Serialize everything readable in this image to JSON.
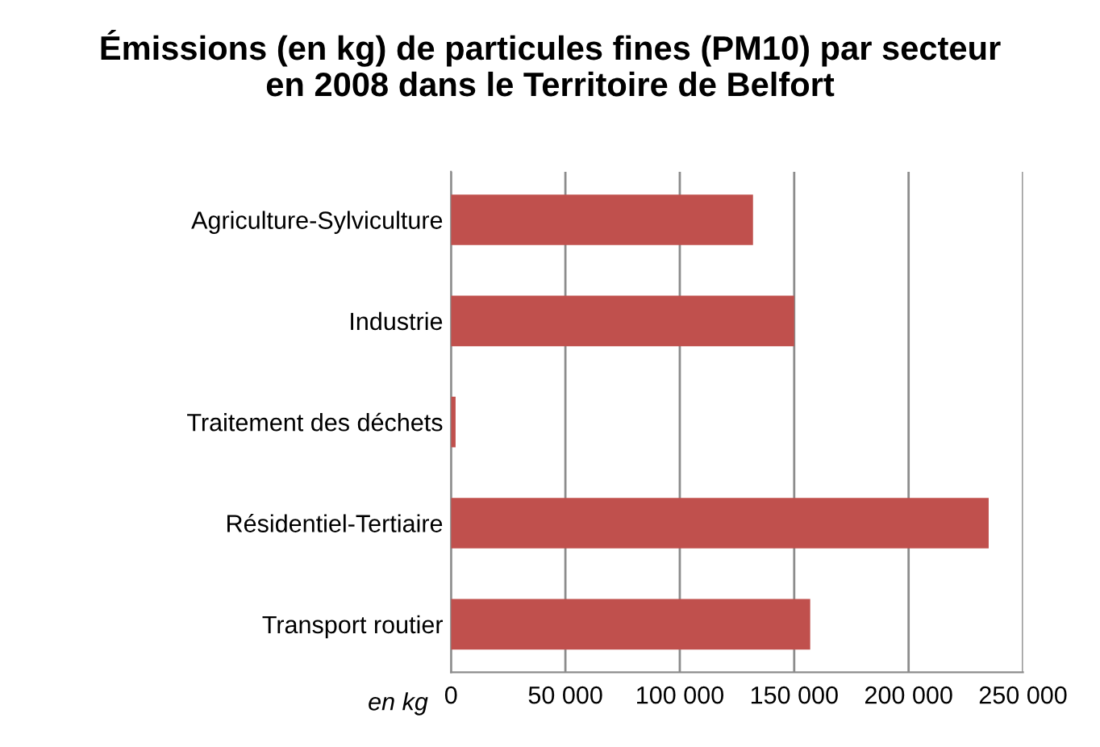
{
  "chart_data": {
    "type": "bar",
    "orientation": "horizontal",
    "title": "Émissions (en kg) de particules fines (PM10) par secteur\nen 2008 dans le Territoire de Belfort",
    "xlabel": "en kg",
    "categories": [
      "Agriculture-Sylviculture",
      "Industrie",
      "Traitement des déchets",
      "Résidentiel-Tertiaire",
      "Transport routier"
    ],
    "values": [
      132000,
      150000,
      2000,
      235000,
      157000
    ],
    "color": "#c0504d",
    "xlim": [
      0,
      250000
    ],
    "xticks": [
      {
        "value": 0,
        "label": "0"
      },
      {
        "value": 50000,
        "label": "50 000"
      },
      {
        "value": 100000,
        "label": "100 000"
      },
      {
        "value": 150000,
        "label": "150 000"
      },
      {
        "value": 200000,
        "label": "200 000"
      },
      {
        "value": 250000,
        "label": "250 000"
      }
    ],
    "grid": "x",
    "legend": false
  }
}
